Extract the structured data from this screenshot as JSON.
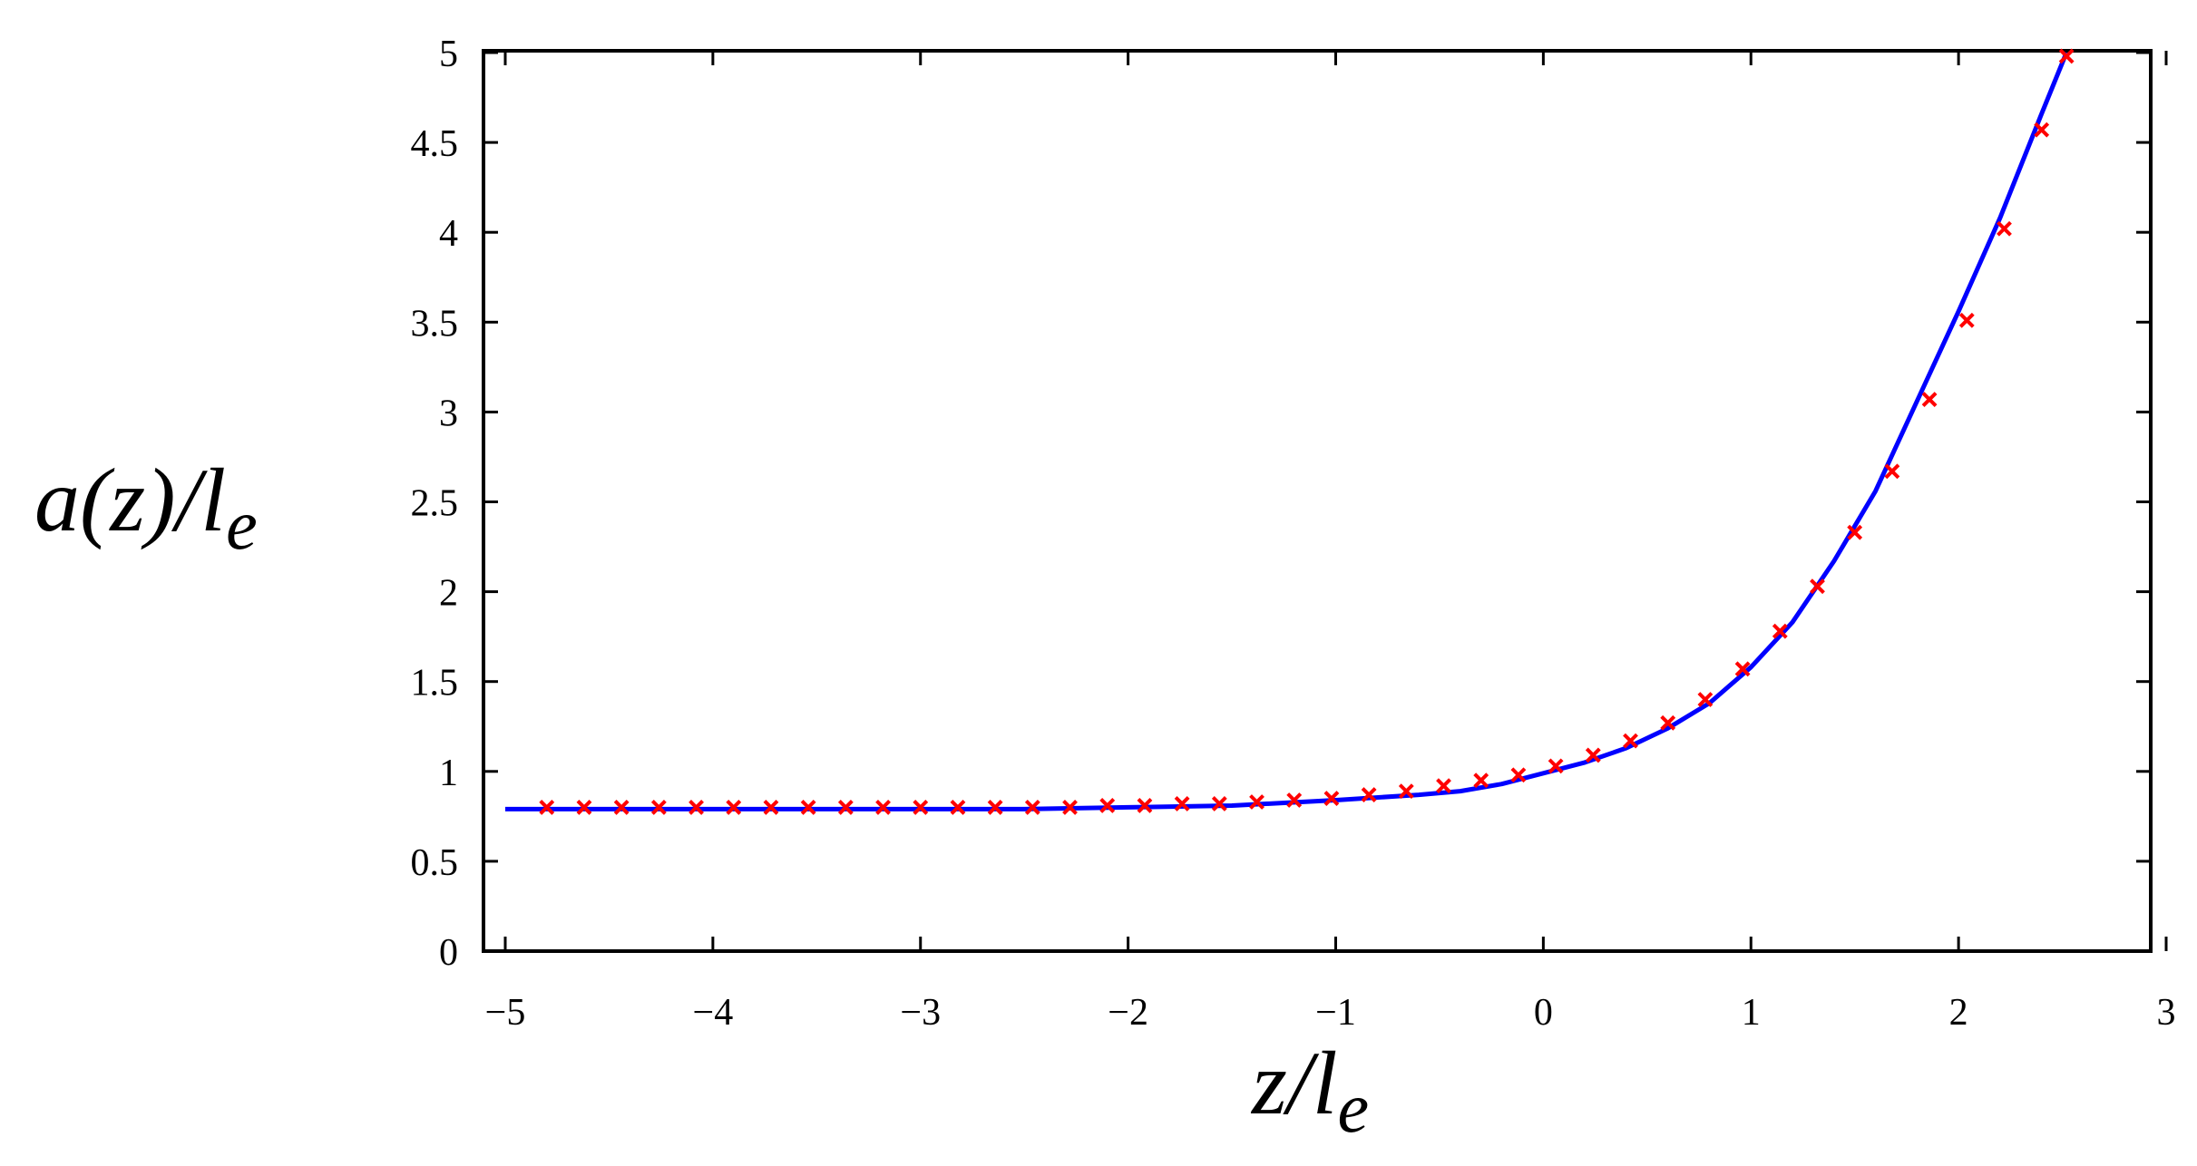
{
  "chart_data": {
    "type": "line",
    "title": "",
    "xlabel": {
      "main": "z/l",
      "sub": "e"
    },
    "ylabel": {
      "main": "a(z)/l",
      "sub": "e"
    },
    "xlim": [
      -5,
      3
    ],
    "ylim": [
      0,
      5
    ],
    "x_ticks": [
      -5,
      -4,
      -3,
      -2,
      -1,
      0,
      1,
      2,
      3
    ],
    "y_ticks": [
      0,
      0.5,
      1,
      1.5,
      2,
      2.5,
      3,
      3.5,
      4,
      4.5,
      5
    ],
    "x_tick_labels": [
      "−5",
      "−4",
      "−3",
      "−2",
      "−1",
      "0",
      "1",
      "2",
      "3"
    ],
    "y_tick_labels": [
      "0",
      "0.5",
      "1",
      "1.5",
      "2",
      "2.5",
      "3",
      "3.5",
      "4",
      "4.5",
      "5"
    ],
    "grid": false,
    "legend": "none",
    "series": [
      {
        "style": "line",
        "color": "#0000ff",
        "x": [
          -5.0,
          -4.0,
          -3.0,
          -2.5,
          -2.0,
          -1.5,
          -1.0,
          -0.6,
          -0.4,
          -0.2,
          0.0,
          0.2,
          0.4,
          0.6,
          0.8,
          1.0,
          1.2,
          1.4,
          1.6,
          1.8,
          2.0,
          2.2,
          2.4,
          2.52
        ],
        "y": [
          0.79,
          0.79,
          0.79,
          0.79,
          0.8,
          0.81,
          0.84,
          0.87,
          0.89,
          0.93,
          0.99,
          1.05,
          1.13,
          1.24,
          1.38,
          1.58,
          1.83,
          2.17,
          2.56,
          3.06,
          3.56,
          4.08,
          4.66,
          5.0
        ]
      },
      {
        "style": "markers",
        "marker": "x",
        "color": "#ff0000",
        "x": [
          -4.8,
          -4.62,
          -4.44,
          -4.26,
          -4.08,
          -3.9,
          -3.72,
          -3.54,
          -3.36,
          -3.18,
          -3.0,
          -2.82,
          -2.64,
          -2.46,
          -2.28,
          -2.1,
          -1.92,
          -1.74,
          -1.56,
          -1.38,
          -1.2,
          -1.02,
          -0.84,
          -0.66,
          -0.48,
          -0.3,
          -0.12,
          0.06,
          0.24,
          0.42,
          0.6,
          0.78,
          0.96,
          1.14,
          1.32,
          1.5,
          1.68,
          1.86,
          2.04,
          2.22,
          2.4,
          2.52
        ],
        "y": [
          0.8,
          0.8,
          0.8,
          0.8,
          0.8,
          0.8,
          0.8,
          0.8,
          0.8,
          0.8,
          0.8,
          0.8,
          0.8,
          0.8,
          0.8,
          0.81,
          0.81,
          0.82,
          0.82,
          0.83,
          0.84,
          0.85,
          0.87,
          0.89,
          0.92,
          0.95,
          0.98,
          1.03,
          1.09,
          1.17,
          1.27,
          1.4,
          1.57,
          1.78,
          2.03,
          2.33,
          2.67,
          3.07,
          3.51,
          4.02,
          4.57,
          4.98
        ]
      }
    ]
  }
}
